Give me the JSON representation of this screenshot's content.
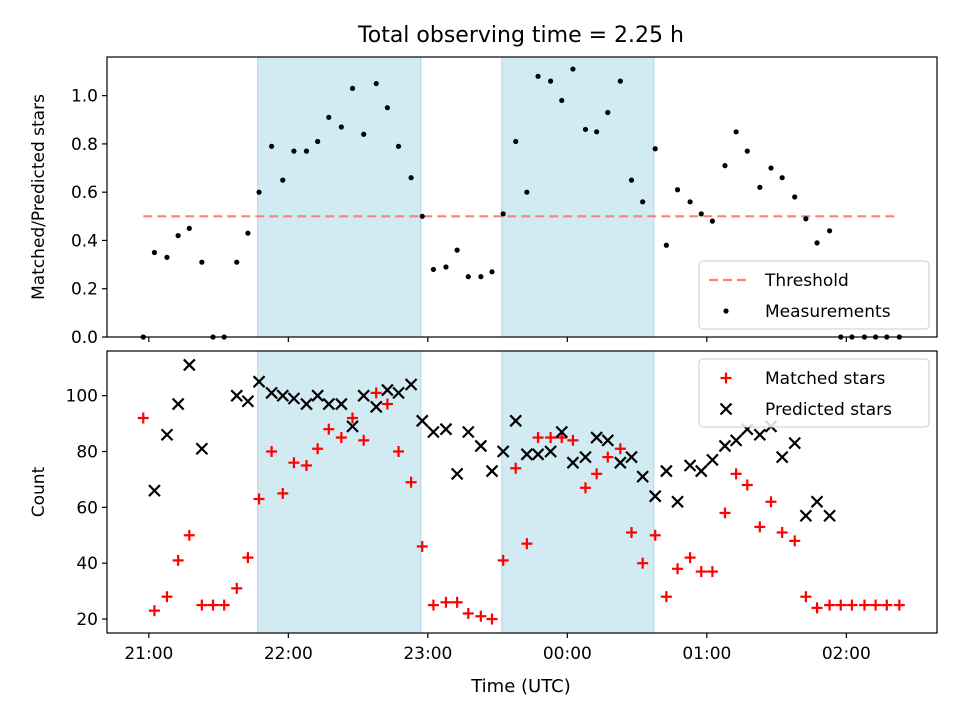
{
  "figure": {
    "title": "Total observing time = 2.25 h",
    "xlabel": "Time (UTC)"
  },
  "chart_data": [
    {
      "type": "scatter",
      "ylabel": "Matched/Predicted stars",
      "x_unit": "hours after 21:00 UTC",
      "xlim": [
        -0.3,
        5.65
      ],
      "ylim": [
        0,
        1.16
      ],
      "yticks": [
        0.0,
        0.2,
        0.4,
        0.6,
        0.8,
        1.0
      ],
      "ytick_labels": [
        "0.0",
        "0.2",
        "0.4",
        "0.6",
        "0.8",
        "1.0"
      ],
      "shaded_regions": [
        [
          0.78,
          1.95
        ],
        [
          2.53,
          3.62
        ]
      ],
      "shade_color": "#add8e6",
      "threshold": {
        "name": "Threshold",
        "value": 0.5,
        "x": [
          -0.04,
          5.38
        ],
        "color": "#ff7f7f"
      },
      "legend": {
        "position": "lower-right",
        "entries": [
          "Threshold",
          "Measurements"
        ]
      },
      "series": [
        {
          "name": "Measurements",
          "marker": "dot",
          "color": "#000000",
          "points": [
            [
              -0.04,
              0.0
            ],
            [
              0.04,
              0.35
            ],
            [
              0.13,
              0.33
            ],
            [
              0.21,
              0.42
            ],
            [
              0.29,
              0.45
            ],
            [
              0.38,
              0.31
            ],
            [
              0.46,
              0.0
            ],
            [
              0.54,
              0.0
            ],
            [
              0.63,
              0.31
            ],
            [
              0.71,
              0.43
            ],
            [
              0.79,
              0.6
            ],
            [
              0.88,
              0.79
            ],
            [
              0.96,
              0.65
            ],
            [
              1.04,
              0.77
            ],
            [
              1.13,
              0.77
            ],
            [
              1.21,
              0.81
            ],
            [
              1.29,
              0.91
            ],
            [
              1.38,
              0.87
            ],
            [
              1.46,
              1.03
            ],
            [
              1.54,
              0.84
            ],
            [
              1.63,
              1.05
            ],
            [
              1.71,
              0.95
            ],
            [
              1.79,
              0.79
            ],
            [
              1.88,
              0.66
            ],
            [
              1.96,
              0.5
            ],
            [
              2.04,
              0.28
            ],
            [
              2.13,
              0.29
            ],
            [
              2.21,
              0.36
            ],
            [
              2.29,
              0.25
            ],
            [
              2.38,
              0.25
            ],
            [
              2.46,
              0.27
            ],
            [
              2.54,
              0.51
            ],
            [
              2.63,
              0.81
            ],
            [
              2.71,
              0.6
            ],
            [
              2.79,
              1.08
            ],
            [
              2.88,
              1.06
            ],
            [
              2.96,
              0.98
            ],
            [
              3.04,
              1.11
            ],
            [
              3.13,
              0.86
            ],
            [
              3.21,
              0.85
            ],
            [
              3.29,
              0.93
            ],
            [
              3.38,
              1.06
            ],
            [
              3.46,
              0.65
            ],
            [
              3.54,
              0.56
            ],
            [
              3.63,
              0.78
            ],
            [
              3.71,
              0.38
            ],
            [
              3.79,
              0.61
            ],
            [
              3.88,
              0.56
            ],
            [
              3.96,
              0.51
            ],
            [
              4.04,
              0.48
            ],
            [
              4.13,
              0.71
            ],
            [
              4.21,
              0.85
            ],
            [
              4.29,
              0.77
            ],
            [
              4.38,
              0.62
            ],
            [
              4.46,
              0.7
            ],
            [
              4.54,
              0.66
            ],
            [
              4.63,
              0.58
            ],
            [
              4.71,
              0.49
            ],
            [
              4.79,
              0.39
            ],
            [
              4.88,
              0.44
            ],
            [
              4.96,
              0.0
            ],
            [
              5.04,
              0.0
            ],
            [
              5.13,
              0.0
            ],
            [
              5.21,
              0.0
            ],
            [
              5.29,
              0.0
            ],
            [
              5.38,
              0.0
            ]
          ]
        }
      ]
    },
    {
      "type": "scatter",
      "ylabel": "Count",
      "x_unit": "hours after 21:00 UTC",
      "xlim": [
        -0.3,
        5.65
      ],
      "ylim": [
        15,
        116
      ],
      "xticks": [
        0,
        1,
        2,
        3,
        4,
        5
      ],
      "xtick_labels": [
        "21:00",
        "22:00",
        "23:00",
        "00:00",
        "01:00",
        "02:00"
      ],
      "yticks": [
        20,
        40,
        60,
        80,
        100
      ],
      "ytick_labels": [
        "20",
        "40",
        "60",
        "80",
        "100"
      ],
      "shaded_regions": [
        [
          0.78,
          1.95
        ],
        [
          2.53,
          3.62
        ]
      ],
      "shade_color": "#add8e6",
      "legend": {
        "position": "upper-right",
        "entries": [
          "Matched stars",
          "Predicted stars"
        ]
      },
      "series": [
        {
          "name": "Matched stars",
          "marker": "plus",
          "color": "#ff0000",
          "points": [
            [
              -0.04,
              92
            ],
            [
              0.04,
              23
            ],
            [
              0.13,
              28
            ],
            [
              0.21,
              41
            ],
            [
              0.29,
              50
            ],
            [
              0.38,
              25
            ],
            [
              0.46,
              25
            ],
            [
              0.54,
              25
            ],
            [
              0.63,
              31
            ],
            [
              0.71,
              42
            ],
            [
              0.79,
              63
            ],
            [
              0.88,
              80
            ],
            [
              0.96,
              65
            ],
            [
              1.04,
              76
            ],
            [
              1.13,
              75
            ],
            [
              1.21,
              81
            ],
            [
              1.29,
              88
            ],
            [
              1.38,
              85
            ],
            [
              1.46,
              92
            ],
            [
              1.54,
              84
            ],
            [
              1.63,
              101
            ],
            [
              1.71,
              97
            ],
            [
              1.79,
              80
            ],
            [
              1.88,
              69
            ],
            [
              1.96,
              46
            ],
            [
              2.04,
              25
            ],
            [
              2.13,
              26
            ],
            [
              2.21,
              26
            ],
            [
              2.29,
              22
            ],
            [
              2.38,
              21
            ],
            [
              2.46,
              20
            ],
            [
              2.54,
              41
            ],
            [
              2.63,
              74
            ],
            [
              2.71,
              47
            ],
            [
              2.79,
              85
            ],
            [
              2.88,
              85
            ],
            [
              2.96,
              85
            ],
            [
              3.04,
              84
            ],
            [
              3.13,
              67
            ],
            [
              3.21,
              72
            ],
            [
              3.29,
              78
            ],
            [
              3.38,
              81
            ],
            [
              3.46,
              51
            ],
            [
              3.54,
              40
            ],
            [
              3.63,
              50
            ],
            [
              3.71,
              28
            ],
            [
              3.79,
              38
            ],
            [
              3.88,
              42
            ],
            [
              3.96,
              37
            ],
            [
              4.04,
              37
            ],
            [
              4.13,
              58
            ],
            [
              4.21,
              72
            ],
            [
              4.29,
              68
            ],
            [
              4.38,
              53
            ],
            [
              4.46,
              62
            ],
            [
              4.54,
              51
            ],
            [
              4.63,
              48
            ],
            [
              4.71,
              28
            ],
            [
              4.79,
              24
            ],
            [
              4.88,
              25
            ],
            [
              4.96,
              25
            ],
            [
              5.04,
              25
            ],
            [
              5.13,
              25
            ],
            [
              5.21,
              25
            ],
            [
              5.29,
              25
            ],
            [
              5.38,
              25
            ]
          ]
        },
        {
          "name": "Predicted stars",
          "marker": "x",
          "color": "#000000",
          "points": [
            [
              0.04,
              66
            ],
            [
              0.13,
              86
            ],
            [
              0.21,
              97
            ],
            [
              0.29,
              111
            ],
            [
              0.38,
              81
            ],
            [
              0.63,
              100
            ],
            [
              0.71,
              98
            ],
            [
              0.79,
              105
            ],
            [
              0.88,
              101
            ],
            [
              0.96,
              100
            ],
            [
              1.04,
              99
            ],
            [
              1.13,
              97
            ],
            [
              1.21,
              100
            ],
            [
              1.29,
              97
            ],
            [
              1.38,
              97
            ],
            [
              1.46,
              89
            ],
            [
              1.54,
              100
            ],
            [
              1.63,
              96
            ],
            [
              1.71,
              102
            ],
            [
              1.79,
              101
            ],
            [
              1.88,
              104
            ],
            [
              1.96,
              91
            ],
            [
              2.04,
              87
            ],
            [
              2.13,
              88
            ],
            [
              2.21,
              72
            ],
            [
              2.29,
              87
            ],
            [
              2.38,
              82
            ],
            [
              2.46,
              73
            ],
            [
              2.54,
              80
            ],
            [
              2.63,
              91
            ],
            [
              2.71,
              79
            ],
            [
              2.79,
              79
            ],
            [
              2.88,
              80
            ],
            [
              2.96,
              87
            ],
            [
              3.04,
              76
            ],
            [
              3.13,
              78
            ],
            [
              3.21,
              85
            ],
            [
              3.29,
              84
            ],
            [
              3.38,
              76
            ],
            [
              3.46,
              78
            ],
            [
              3.54,
              71
            ],
            [
              3.63,
              64
            ],
            [
              3.71,
              73
            ],
            [
              3.79,
              62
            ],
            [
              3.88,
              75
            ],
            [
              3.96,
              73
            ],
            [
              4.04,
              77
            ],
            [
              4.13,
              82
            ],
            [
              4.21,
              84
            ],
            [
              4.29,
              88
            ],
            [
              4.38,
              86
            ],
            [
              4.46,
              89
            ],
            [
              4.54,
              78
            ],
            [
              4.63,
              83
            ],
            [
              4.71,
              57
            ],
            [
              4.79,
              62
            ],
            [
              4.88,
              57
            ]
          ]
        }
      ]
    }
  ]
}
